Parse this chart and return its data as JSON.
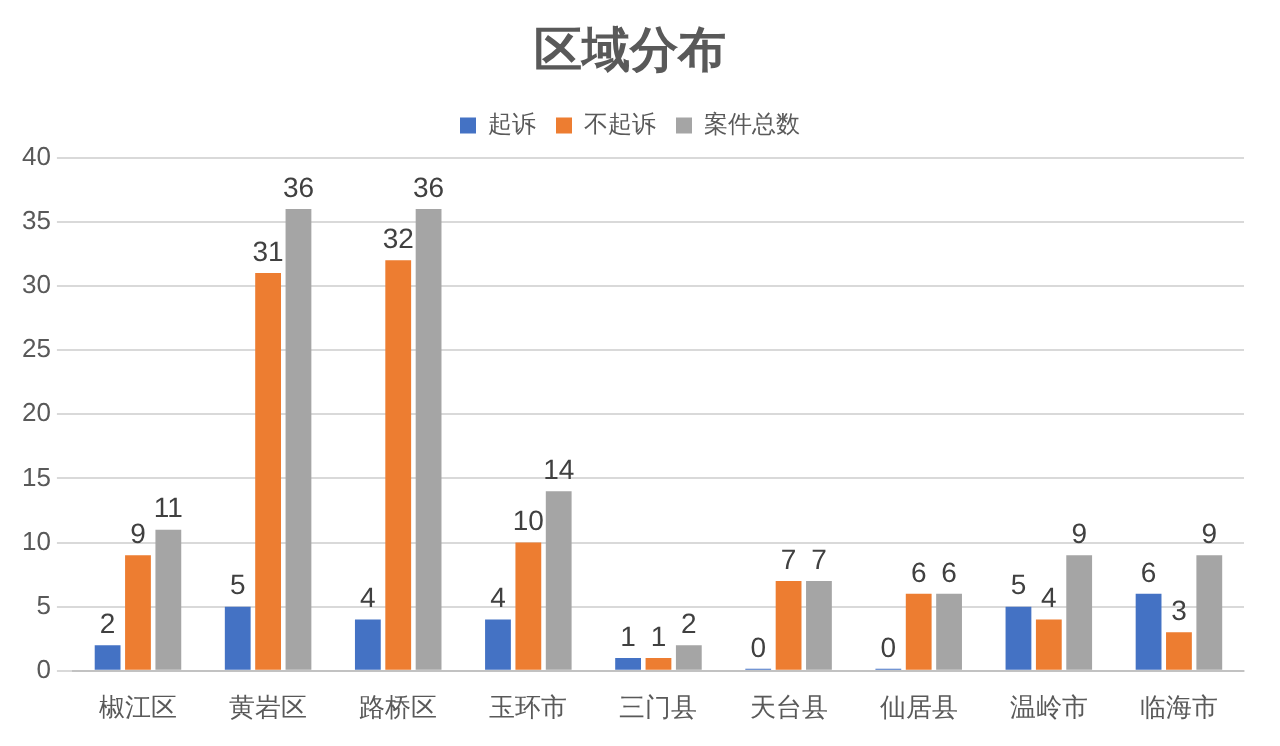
{
  "chart_data": {
    "type": "bar",
    "title": "区域分布",
    "categories": [
      "椒江区",
      "黄岩区",
      "路桥区",
      "玉环市",
      "三门县",
      "天台县",
      "仙居县",
      "温岭市",
      "临海市"
    ],
    "series": [
      {
        "name": "起诉",
        "color": "#4472c4",
        "values": [
          2,
          5,
          4,
          4,
          1,
          0,
          0,
          5,
          6
        ]
      },
      {
        "name": "不起诉",
        "color": "#ed7d31",
        "values": [
          9,
          31,
          32,
          10,
          1,
          7,
          6,
          4,
          3
        ]
      },
      {
        "name": "案件总数",
        "color": "#a5a5a5",
        "values": [
          11,
          36,
          36,
          14,
          2,
          7,
          6,
          9,
          9
        ]
      }
    ],
    "ylim": [
      0,
      40
    ],
    "yticks": [
      0,
      5,
      10,
      15,
      20,
      25,
      30,
      35,
      40
    ],
    "grid": "y",
    "legend": "top",
    "data_labels": true
  }
}
